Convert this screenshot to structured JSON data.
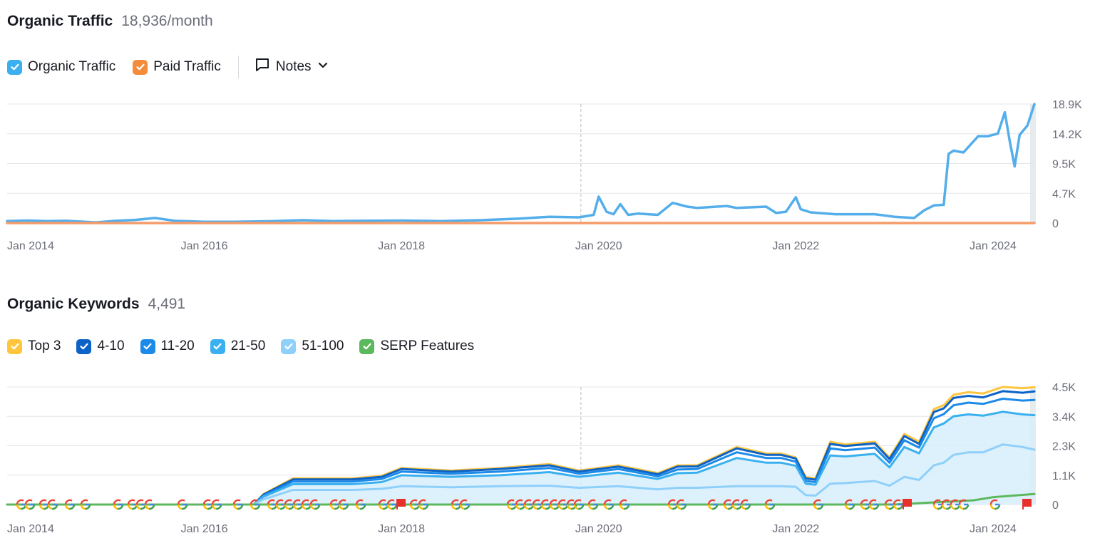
{
  "traffic": {
    "title": "Organic Traffic",
    "value": "18,936/month",
    "legend": {
      "organic_label": "Organic Traffic",
      "organic_color": "#3ab0f0",
      "paid_label": "Paid Traffic",
      "paid_color": "#f58c3c",
      "notes_label": "Notes"
    }
  },
  "keywords": {
    "title": "Organic Keywords",
    "value": "4,491",
    "legend": [
      {
        "label": "Top 3",
        "color": "#ffc53d"
      },
      {
        "label": "4-10",
        "color": "#0c62c6"
      },
      {
        "label": "11-20",
        "color": "#1c8ae8"
      },
      {
        "label": "21-50",
        "color": "#3ab0f0"
      },
      {
        "label": "51-100",
        "color": "#8fd0fb"
      },
      {
        "label": "SERP Features",
        "color": "#5cb85c"
      }
    ]
  },
  "chart_data": [
    {
      "type": "line",
      "title": "Organic Traffic",
      "x_tick_labels": [
        "Jan 2014",
        "Jan 2016",
        "Jan 2018",
        "Jan 2020",
        "Jan 2022",
        "Jan 2024"
      ],
      "y_tick_labels": [
        "18.9K",
        "14.2K",
        "9.5K",
        "4.7K",
        "0"
      ],
      "ylim": [
        0,
        18900
      ],
      "xlim": [
        2014.0,
        2024.42
      ],
      "grid": true,
      "series": [
        {
          "name": "Organic Traffic",
          "color": "#54aeea",
          "x": [
            2014.0,
            2014.2,
            2014.4,
            2014.6,
            2014.9,
            2015.1,
            2015.3,
            2015.5,
            2015.7,
            2016.0,
            2016.3,
            2016.7,
            2017.0,
            2017.3,
            2017.6,
            2018.0,
            2018.4,
            2018.8,
            2019.2,
            2019.5,
            2019.8,
            2019.95,
            2020.0,
            2020.08,
            2020.15,
            2020.22,
            2020.3,
            2020.4,
            2020.6,
            2020.75,
            2020.9,
            2021.0,
            2021.3,
            2021.4,
            2021.7,
            2021.8,
            2021.9,
            2022.0,
            2022.05,
            2022.15,
            2022.4,
            2022.8,
            2023.0,
            2023.2,
            2023.3,
            2023.4,
            2023.5,
            2023.55,
            2023.6,
            2023.7,
            2023.85,
            2023.95,
            2024.05,
            2024.12,
            2024.17,
            2024.22,
            2024.27,
            2024.35,
            2024.42
          ],
          "y": [
            300,
            400,
            300,
            350,
            100,
            350,
            500,
            800,
            350,
            200,
            200,
            300,
            450,
            300,
            350,
            400,
            300,
            450,
            700,
            1000,
            900,
            1300,
            4200,
            1800,
            1400,
            3000,
            1300,
            1500,
            1300,
            3200,
            2600,
            2400,
            2700,
            2400,
            2600,
            1600,
            1800,
            4100,
            2200,
            1700,
            1400,
            1400,
            1000,
            800,
            2000,
            2800,
            2900,
            11000,
            11500,
            11200,
            13800,
            13800,
            14200,
            17600,
            13000,
            9000,
            14000,
            15500,
            18900
          ]
        },
        {
          "name": "Paid Traffic",
          "color": "#f59c6a",
          "x": [
            2014.0,
            2024.42
          ],
          "y": [
            0,
            0
          ]
        }
      ]
    },
    {
      "type": "area",
      "title": "Organic Keywords",
      "x_tick_labels": [
        "Jan 2014",
        "Jan 2016",
        "Jan 2018",
        "Jan 2020",
        "Jan 2022",
        "Jan 2024"
      ],
      "y_tick_labels": [
        "4.5K",
        "3.4K",
        "2.3K",
        "1.1K",
        "0"
      ],
      "ylim": [
        0,
        4500
      ],
      "xlim": [
        2014.0,
        2024.42
      ],
      "grid": true,
      "series": [
        {
          "name": "Top 3",
          "color": "#ffc53d",
          "x": [
            2014.0,
            2016.5,
            2016.6,
            2016.9,
            2017.5,
            2017.8,
            2018.0,
            2018.5,
            2019.0,
            2019.5,
            2019.8,
            2020.2,
            2020.6,
            2020.8,
            2021.0,
            2021.4,
            2021.7,
            2021.85,
            2022.0,
            2022.1,
            2022.2,
            2022.35,
            2022.5,
            2022.8,
            2022.95,
            2023.1,
            2023.25,
            2023.4,
            2023.5,
            2023.6,
            2023.75,
            2023.9,
            2024.1,
            2024.3,
            2024.42
          ],
          "y": [
            0,
            0,
            400,
            1000,
            1000,
            1100,
            1400,
            1300,
            1400,
            1550,
            1300,
            1500,
            1200,
            1500,
            1500,
            2200,
            1950,
            1950,
            1800,
            1050,
            1000,
            2400,
            2300,
            2400,
            1800,
            2700,
            2400,
            3650,
            3800,
            4200,
            4300,
            4250,
            4500,
            4450,
            4491
          ]
        },
        {
          "name": "4-10",
          "color": "#0c62c6",
          "x": [
            2014.0,
            2016.5,
            2016.6,
            2016.9,
            2017.5,
            2017.8,
            2018.0,
            2018.5,
            2019.0,
            2019.5,
            2019.8,
            2020.2,
            2020.6,
            2020.8,
            2021.0,
            2021.4,
            2021.7,
            2021.85,
            2022.0,
            2022.1,
            2022.2,
            2022.35,
            2022.5,
            2022.8,
            2022.95,
            2023.1,
            2023.25,
            2023.4,
            2023.5,
            2023.6,
            2023.75,
            2023.9,
            2024.1,
            2024.3,
            2024.42
          ],
          "y": [
            0,
            0,
            380,
            960,
            960,
            1060,
            1360,
            1260,
            1360,
            1500,
            1260,
            1450,
            1160,
            1450,
            1460,
            2150,
            1900,
            1900,
            1760,
            1000,
            950,
            2320,
            2240,
            2340,
            1740,
            2620,
            2320,
            3540,
            3680,
            4080,
            4160,
            4100,
            4340,
            4280,
            4330
          ]
        },
        {
          "name": "11-20",
          "color": "#1c8ae8",
          "x": [
            2014.0,
            2016.5,
            2016.6,
            2016.9,
            2017.5,
            2017.8,
            2018.0,
            2018.5,
            2019.0,
            2019.5,
            2019.8,
            2020.2,
            2020.6,
            2020.8,
            2021.0,
            2021.4,
            2021.7,
            2021.85,
            2022.0,
            2022.1,
            2022.2,
            2022.35,
            2022.5,
            2022.8,
            2022.95,
            2023.1,
            2023.25,
            2023.4,
            2023.5,
            2023.6,
            2023.75,
            2023.9,
            2024.1,
            2024.3,
            2024.42
          ],
          "y": [
            0,
            0,
            340,
            880,
            880,
            980,
            1260,
            1180,
            1260,
            1400,
            1180,
            1360,
            1080,
            1340,
            1360,
            2000,
            1780,
            1780,
            1640,
            900,
            860,
            2150,
            2080,
            2180,
            1600,
            2460,
            2180,
            3300,
            3460,
            3800,
            3900,
            3850,
            4050,
            3980,
            4000
          ]
        },
        {
          "name": "21-50",
          "color": "#3ab0f0",
          "x": [
            2014.0,
            2016.5,
            2016.6,
            2016.9,
            2017.5,
            2017.8,
            2018.0,
            2018.5,
            2019.0,
            2019.5,
            2019.8,
            2020.2,
            2020.6,
            2020.8,
            2021.0,
            2021.4,
            2021.7,
            2021.85,
            2022.0,
            2022.1,
            2022.2,
            2022.35,
            2022.5,
            2022.8,
            2022.95,
            2023.1,
            2023.25,
            2023.4,
            2023.5,
            2023.6,
            2023.75,
            2023.9,
            2024.1,
            2024.3,
            2024.42
          ],
          "y": [
            0,
            0,
            300,
            780,
            780,
            860,
            1120,
            1060,
            1120,
            1240,
            1060,
            1220,
            980,
            1200,
            1220,
            1780,
            1600,
            1600,
            1480,
            800,
            760,
            1880,
            1840,
            1940,
            1420,
            2200,
            1960,
            2950,
            3100,
            3380,
            3450,
            3400,
            3550,
            3450,
            3420
          ]
        },
        {
          "name": "51-100",
          "color": "#8fd0fb",
          "x": [
            2014.0,
            2016.5,
            2016.6,
            2016.9,
            2017.5,
            2017.8,
            2018.0,
            2018.5,
            2019.0,
            2019.5,
            2019.8,
            2020.2,
            2020.6,
            2020.8,
            2021.0,
            2021.4,
            2021.7,
            2021.85,
            2022.0,
            2022.1,
            2022.2,
            2022.35,
            2022.5,
            2022.8,
            2022.95,
            2023.1,
            2023.25,
            2023.4,
            2023.5,
            2023.6,
            2023.75,
            2023.9,
            2024.1,
            2024.3,
            2024.42
          ],
          "y": [
            0,
            0,
            200,
            560,
            560,
            600,
            700,
            660,
            700,
            720,
            640,
            700,
            580,
            640,
            640,
            700,
            700,
            700,
            680,
            360,
            340,
            800,
            820,
            900,
            720,
            1060,
            940,
            1500,
            1600,
            1900,
            2000,
            2000,
            2300,
            2200,
            2100
          ]
        },
        {
          "name": "SERP Features",
          "color": "#5cb85c",
          "x": [
            2014.0,
            2023.0,
            2023.2,
            2023.5,
            2023.8,
            2024.0,
            2024.2,
            2024.42
          ],
          "y": [
            0,
            0,
            40,
            100,
            160,
            280,
            340,
            400
          ]
        }
      ]
    }
  ]
}
